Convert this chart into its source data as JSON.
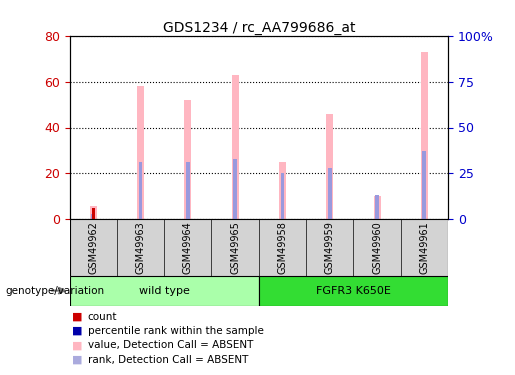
{
  "title": "GDS1234 / rc_AA799686_at",
  "samples": [
    "GSM49962",
    "GSM49963",
    "GSM49964",
    "GSM49965",
    "GSM49958",
    "GSM49959",
    "GSM49960",
    "GSM49961"
  ],
  "groups": [
    "wild type",
    "wild type",
    "wild type",
    "wild type",
    "FGFR3 K650E",
    "FGFR3 K650E",
    "FGFR3 K650E",
    "FGFR3 K650E"
  ],
  "group_colors": {
    "wild type": "#AAFFAA",
    "FGFR3 K650E": "#33DD33"
  },
  "pink_values": [
    6,
    58,
    52,
    63,
    25,
    46,
    10,
    73
  ],
  "blue_values": [
    3,
    31,
    31,
    33,
    25,
    28,
    13,
    37
  ],
  "red_values": [
    5,
    0,
    0,
    0,
    0,
    0,
    0,
    0
  ],
  "pink_color": "#FFB6C1",
  "blue_color": "#9999DD",
  "red_color": "#CC0000",
  "ylim_left": [
    0,
    80
  ],
  "ylim_right": [
    0,
    100
  ],
  "yticks_left": [
    0,
    20,
    40,
    60,
    80
  ],
  "yticks_right": [
    0,
    25,
    50,
    75,
    100
  ],
  "ylabel_left_color": "#CC0000",
  "ylabel_right_color": "#0000CC",
  "legend_items": [
    {
      "label": "count",
      "color": "#CC0000"
    },
    {
      "label": "percentile rank within the sample",
      "color": "#0000AA"
    },
    {
      "label": "value, Detection Call = ABSENT",
      "color": "#FFB6C1"
    },
    {
      "label": "rank, Detection Call = ABSENT",
      "color": "#AAAADD"
    }
  ],
  "genotype_label": "genotype/variation",
  "bar_width": 0.15,
  "blue_bar_width": 0.08,
  "red_bar_width": 0.06
}
